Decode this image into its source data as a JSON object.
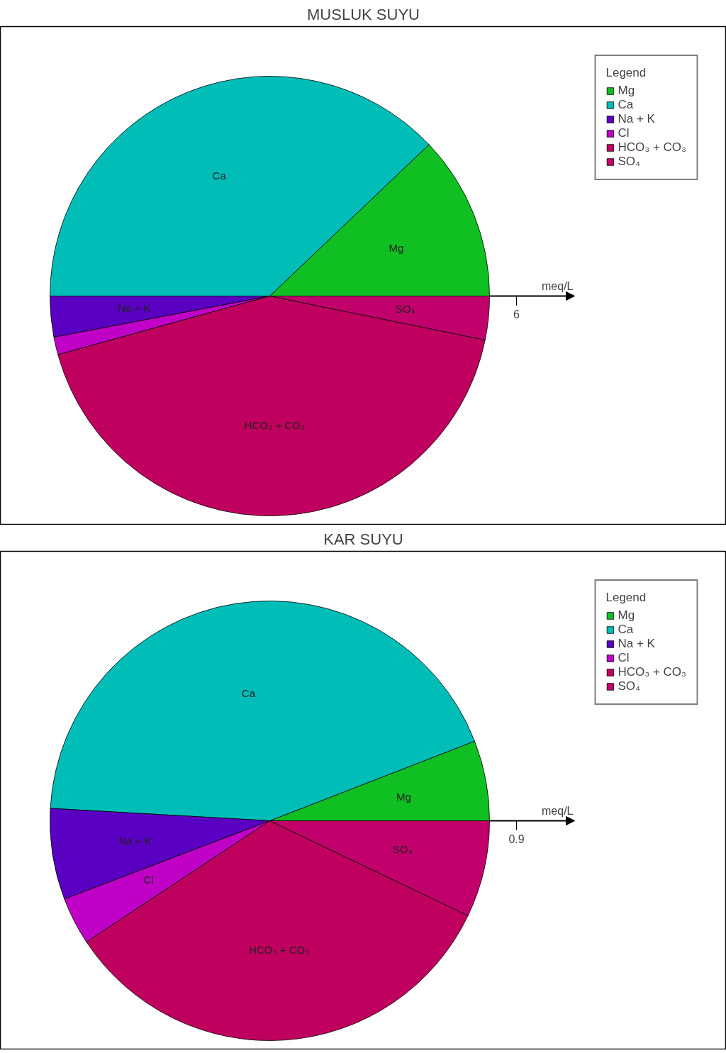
{
  "chart_data": [
    {
      "type": "pie",
      "title": "MUSLUK SUYU",
      "legend_title": "Legend",
      "legend": "top right",
      "categories": [
        "Mg",
        "Ca",
        "Na + K",
        "Cl",
        "HCO₃ + CO₃",
        "SO₄"
      ],
      "values": [
        12.1,
        37.9,
        3.0,
        1.3,
        42.5,
        3.2
      ],
      "colors": [
        "#10bf22",
        "#00bdb8",
        "#5a00c2",
        "#c000c6",
        "#c0005e",
        "#c2006c"
      ],
      "annotations": [
        "meq/L",
        "6"
      ]
    },
    {
      "type": "pie",
      "title": "KAR SUYU",
      "legend_title": "Legend",
      "legend": "top right",
      "categories": [
        "Mg",
        "Ca",
        "Na + K",
        "Cl",
        "HCO₃ + CO₃",
        "SO₄"
      ],
      "values": [
        5.9,
        43.2,
        6.7,
        3.5,
        33.6,
        7.1
      ],
      "colors": [
        "#10bf22",
        "#00bdb8",
        "#5a00c2",
        "#c000c6",
        "#c0005e",
        "#c2006c"
      ],
      "annotations": [
        "meq/L",
        "0.9"
      ]
    }
  ]
}
